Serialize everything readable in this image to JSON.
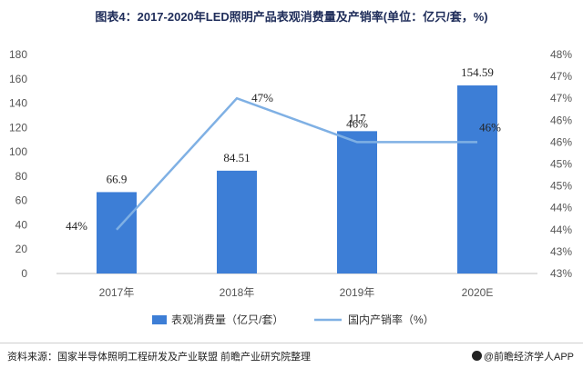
{
  "title": "图表4：2017-2020年LED照明产品表观消费量及产销率(单位：亿只/套，%)",
  "source": "资料来源：国家半导体照明工程研发及产业联盟 前瞻产业研究院整理",
  "brand": "@前瞻经济学人APP",
  "colors": {
    "bar": "#3d7ed6",
    "line": "#7fb0e4",
    "axis_text": "#555555",
    "grid": "#d9d9d9"
  },
  "chart_data": {
    "type": "bar",
    "categories": [
      "2017年",
      "2018年",
      "2019年",
      "2020E"
    ],
    "series": [
      {
        "name": "表观消费量（亿只/套）",
        "type": "bar",
        "axis": "left",
        "values": [
          66.9,
          84.51,
          117,
          154.59
        ],
        "labels": [
          "66.9",
          "84.51",
          "117",
          "154.59"
        ]
      },
      {
        "name": "国内产销率（%）",
        "type": "line",
        "axis": "right",
        "values": [
          44,
          47,
          46,
          46
        ],
        "labels": [
          "44%",
          "47%",
          "46%",
          "46%"
        ]
      }
    ],
    "left_axis": {
      "min": 0,
      "max": 180,
      "step": 20
    },
    "right_axis": {
      "min": 43,
      "max": 48,
      "step": 0.5,
      "tick_labels": [
        "43%",
        "43%",
        "44%",
        "44%",
        "45%",
        "45%",
        "46%",
        "46%",
        "47%",
        "47%",
        "48%"
      ]
    },
    "grid": false,
    "legend_position": "bottom"
  }
}
